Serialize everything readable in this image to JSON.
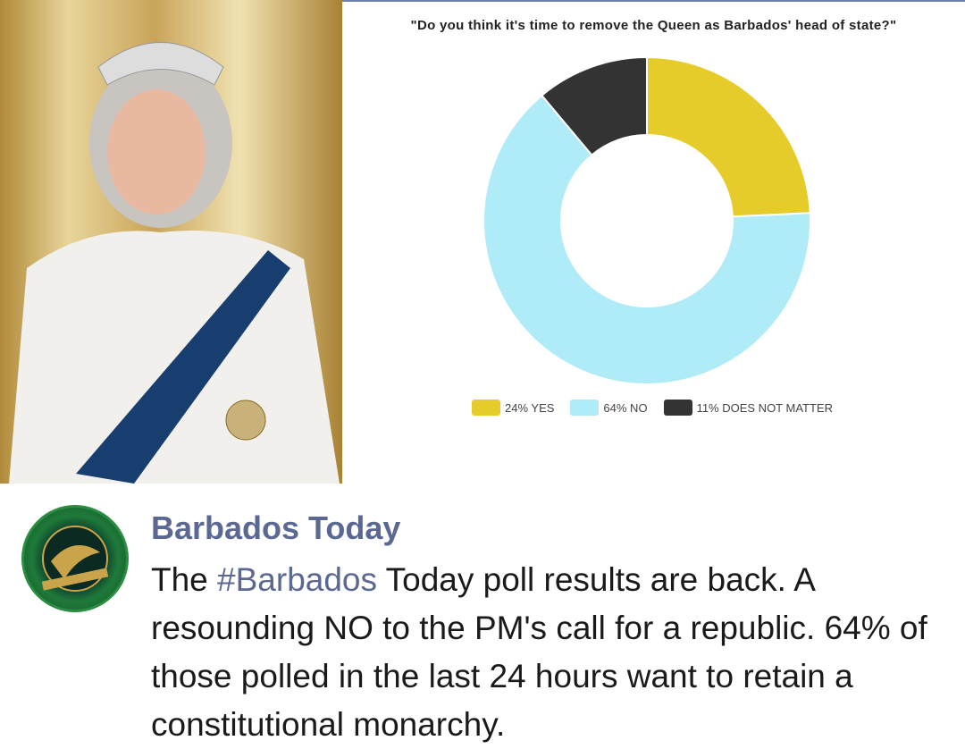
{
  "post": {
    "author": "Barbados Today",
    "text_pre": "The ",
    "hashtag": "#Barbados",
    "text_post": " Today poll results are back. A resounding NO to the PM's call for a republic. 64% of those polled in the last 24 hours want to retain a constitutional monarchy."
  },
  "chart_data": {
    "type": "pie",
    "variant": "donut",
    "title": "\"Do you think it's time to remove the Queen as Barbados' head of state?\"",
    "categories": [
      "YES",
      "NO",
      "DOES NOT MATTER"
    ],
    "values": [
      24,
      64,
      11
    ],
    "labels": [
      "24% YES",
      "64% NO",
      "11% DOES NOT MATTER"
    ],
    "colors": [
      "#e6cc2a",
      "#b0ecf7",
      "#333333"
    ],
    "legend": "bottom"
  }
}
